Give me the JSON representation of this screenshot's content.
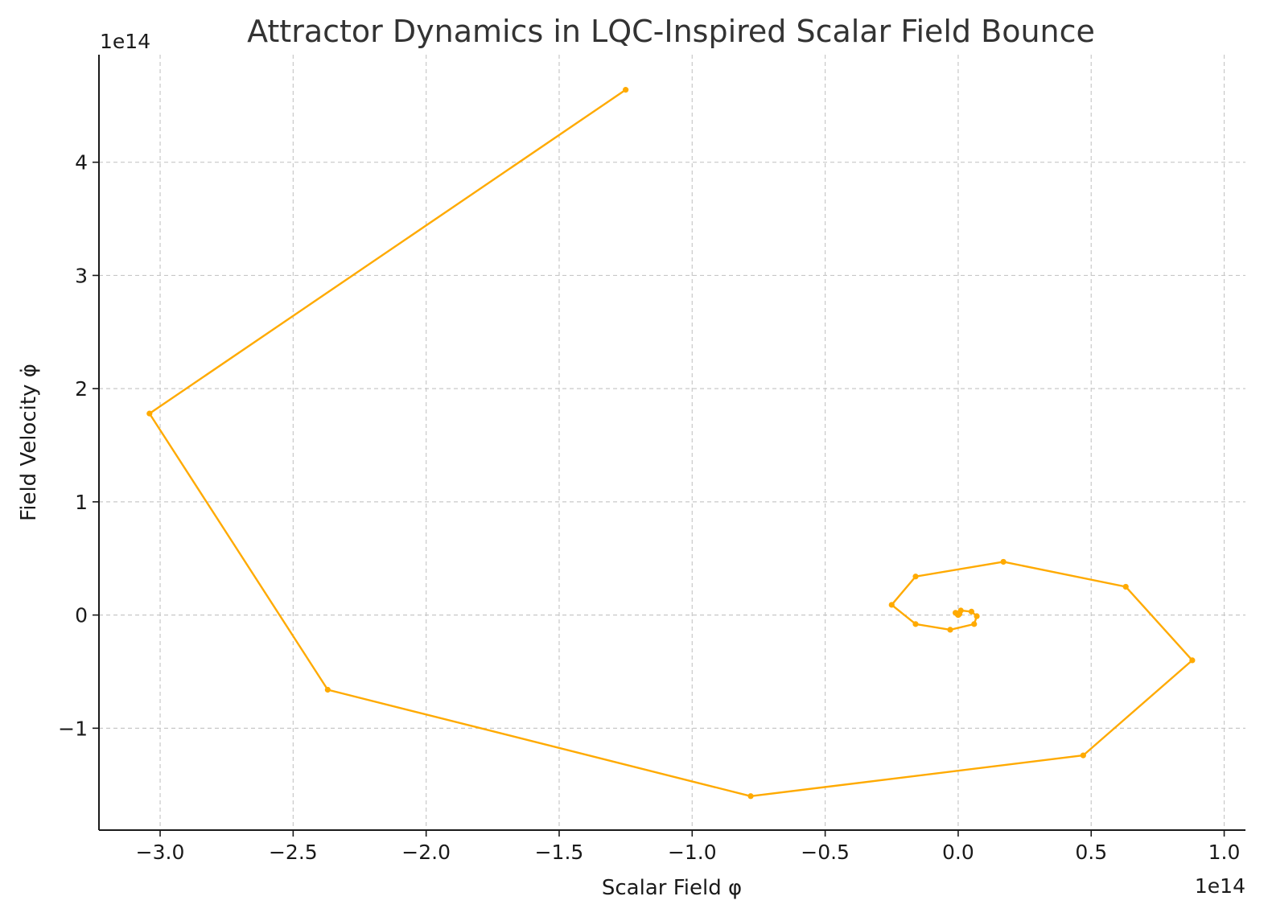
{
  "chart_data": {
    "type": "line",
    "title": "Attractor Dynamics in LQC-Inspired Scalar Field Bounce",
    "xlabel": "Scalar Field φ",
    "ylabel": "Field Velocity φ̇",
    "x_offset_label": "1e14",
    "y_offset_label": "1e14",
    "x_scale": 100000000000000.0,
    "y_scale": 100000000000000.0,
    "xlim": [
      -3.23,
      1.08
    ],
    "ylim": [
      -1.9,
      4.95
    ],
    "xticks": [
      -3.0,
      -2.5,
      -2.0,
      -1.5,
      -1.0,
      -0.5,
      0.0,
      0.5,
      1.0
    ],
    "xtick_labels": [
      "−3.0",
      "−2.5",
      "−2.0",
      "−1.5",
      "−1.0",
      "−0.5",
      "0.0",
      "0.5",
      "1.0"
    ],
    "yticks": [
      -1,
      0,
      1,
      2,
      3,
      4
    ],
    "ytick_labels": [
      "−1",
      "0",
      "1",
      "2",
      "3",
      "4"
    ],
    "grid": true,
    "color": "#FFAA00",
    "series": [
      {
        "x": [
          -1.25,
          -3.04,
          -2.37,
          -0.78,
          0.47,
          0.88,
          0.63,
          0.17,
          -0.16,
          -0.25,
          -0.16,
          -0.03,
          0.06,
          0.07,
          0.05,
          0.01,
          -0.01,
          0.0,
          0.005,
          -0.002,
          0.001
        ],
        "y": [
          4.64,
          1.78,
          -0.66,
          -1.6,
          -1.24,
          -0.4,
          0.25,
          0.47,
          0.34,
          0.09,
          -0.08,
          -0.13,
          -0.08,
          -0.01,
          0.03,
          0.04,
          0.02,
          0.0,
          0.01,
          0.005,
          0.003
        ]
      }
    ]
  }
}
